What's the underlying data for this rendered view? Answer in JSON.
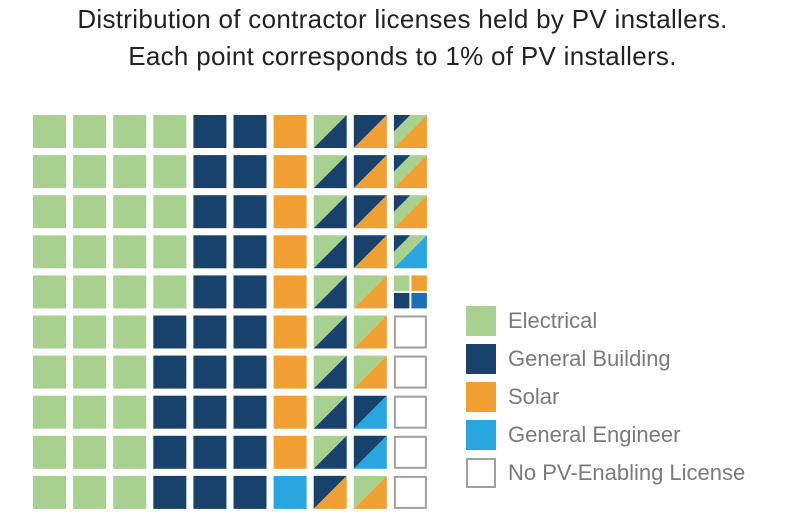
{
  "title_line1": "Distribution of contractor licenses held by PV installers.",
  "title_line2": "Each point corresponds to 1% of PV installers.",
  "colors": {
    "electrical": "#a8d08e",
    "general_building": "#18426b",
    "solar": "#f0a033",
    "general_engineer": "#29a6df",
    "none_border": "#a0a0a0"
  },
  "legend": [
    {
      "key": "electrical",
      "label": "Electrical"
    },
    {
      "key": "general_building",
      "label": "General Building"
    },
    {
      "key": "solar",
      "label": "Solar"
    },
    {
      "key": "general_engineer",
      "label": "General Engineer"
    },
    {
      "key": "none",
      "label": "No PV-Enabling License"
    }
  ],
  "chart_data": {
    "type": "waffle",
    "title": "Distribution of contractor licenses held by PV installers. Each point corresponds to 1% of PV installers.",
    "unit": "1% of PV installers per cell",
    "grid": {
      "rows": 10,
      "columns": 10
    },
    "codes": {
      "E": "Electrical",
      "G": "General Building",
      "S": "Solar",
      "N": "No PV-Enabling License",
      "EG": "Electrical + General Building",
      "GS": "General Building + Solar",
      "ES": "Electrical + Solar",
      "GE": "General Building + General Engineer",
      "SE": "Solar + General Engineer",
      "EGS": "Electrical + General Building + Solar",
      "EGSE": "Electrical + General Building + Solar + General Engineer",
      "GEEng": "General Building + General Engineer (electrical corner)"
    },
    "cells": [
      [
        "E",
        "E",
        "E",
        "E",
        "G",
        "G",
        "S",
        "EG",
        "GS",
        "EGS"
      ],
      [
        "E",
        "E",
        "E",
        "E",
        "G",
        "G",
        "S",
        "EG",
        "GS",
        "EGS"
      ],
      [
        "E",
        "E",
        "E",
        "E",
        "G",
        "G",
        "S",
        "EG",
        "GS",
        "EGS"
      ],
      [
        "E",
        "E",
        "E",
        "E",
        "G",
        "G",
        "S",
        "EG",
        "GS",
        "GEEng"
      ],
      [
        "E",
        "E",
        "E",
        "E",
        "G",
        "G",
        "S",
        "EG",
        "ES",
        "EGSE"
      ],
      [
        "E",
        "E",
        "E",
        "G",
        "G",
        "G",
        "S",
        "EG",
        "ES",
        "N"
      ],
      [
        "E",
        "E",
        "E",
        "G",
        "G",
        "G",
        "S",
        "EG",
        "ES",
        "N"
      ],
      [
        "E",
        "E",
        "E",
        "G",
        "G",
        "G",
        "S",
        "EG",
        "GE",
        "N"
      ],
      [
        "E",
        "E",
        "E",
        "G",
        "G",
        "G",
        "S",
        "EG",
        "GE",
        "N"
      ],
      [
        "E",
        "E",
        "E",
        "G",
        "G",
        "G",
        "SE",
        "GS",
        "ES",
        "N"
      ]
    ]
  }
}
